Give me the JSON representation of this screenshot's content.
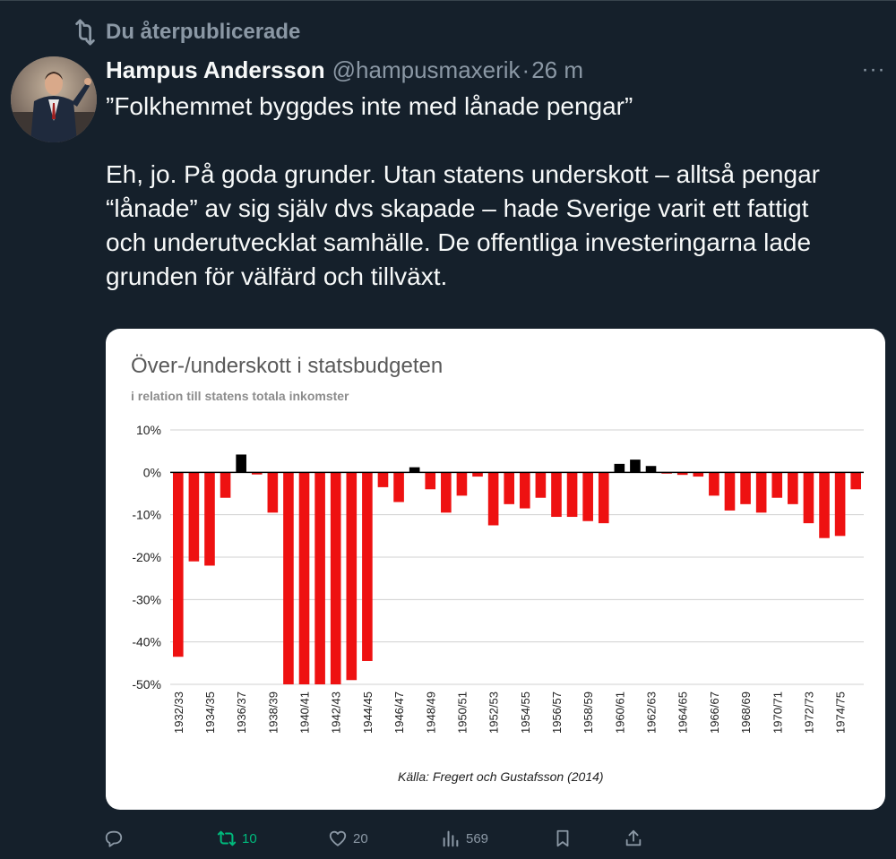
{
  "repost_banner": {
    "icon": "repost-icon",
    "text": "Du återpublicerade"
  },
  "author": {
    "name": "Hampus Andersson",
    "handle": "@hampusmaxerik",
    "separator": "·",
    "time": "26 m",
    "more_icon": "more-icon",
    "more_glyph": "···"
  },
  "tweet": {
    "line1": "”Folkhemmet byggdes inte med lånade pengar”",
    "line2": "Eh, jo. På goda grunder. Utan statens underskott – alltså pengar",
    "line3": "“lånade” av sig själv dvs skapade – hade Sverige varit ett fattigt",
    "line4": "och underutvecklat samhälle. De offentliga investeringarna lade",
    "line5": "grunden för välfärd och tillväxt."
  },
  "actions": {
    "reply": {
      "icon": "reply-icon",
      "count": ""
    },
    "repost": {
      "icon": "repost-icon",
      "count": "10",
      "color": "#00ba7c"
    },
    "like": {
      "icon": "heart-icon",
      "count": "20"
    },
    "views": {
      "icon": "views-icon",
      "count": "569"
    },
    "bookmark": {
      "icon": "bookmark-icon",
      "count": ""
    },
    "share": {
      "icon": "share-icon",
      "count": ""
    }
  },
  "chart_data": {
    "type": "bar",
    "title": "Över-/underskott i statsbudgeten",
    "subtitle": "i relation till statens totala inkomster",
    "source": "Källa: Fregert och Gustafsson (2014)",
    "ylim": [
      -50,
      10
    ],
    "yticks": [
      "10%",
      "0%",
      "-10%",
      "-20%",
      "-30%",
      "-40%",
      "-50%"
    ],
    "ytick_values": [
      10,
      0,
      -10,
      -20,
      -30,
      -40,
      -50
    ],
    "grid": true,
    "colors": {
      "negative": "#ee1111",
      "positive": "#000000"
    },
    "categories": [
      "1932/33",
      "1933/34",
      "1934/35",
      "1935/36",
      "1936/37",
      "1937/38",
      "1938/39",
      "1939/40",
      "1940/41",
      "1941/42",
      "1942/43",
      "1943/44",
      "1944/45",
      "1945/46",
      "1946/47",
      "1947/48",
      "1948/49",
      "1949/50",
      "1950/51",
      "1951/52",
      "1952/53",
      "1953/54",
      "1954/55",
      "1955/56",
      "1956/57",
      "1957/58",
      "1958/59",
      "1959/60",
      "1960/61",
      "1961/62",
      "1962/63",
      "1963/64",
      "1964/65",
      "1965/66",
      "1966/67",
      "1967/68",
      "1968/69",
      "1969/70",
      "1970/71",
      "1971/72",
      "1972/73",
      "1973/74",
      "1974/75",
      "1975/76"
    ],
    "xtick_labels": [
      "1932/33",
      "1934/35",
      "1936/37",
      "1938/39",
      "1940/41",
      "1942/43",
      "1944/45",
      "1946/47",
      "1948/49",
      "1950/51",
      "1952/53",
      "1954/55",
      "1956/57",
      "1958/59",
      "1960/61",
      "1962/63",
      "1964/65",
      "1966/67",
      "1968/69",
      "1970/71",
      "1972/73",
      "1974/75"
    ],
    "values": [
      -43.5,
      -21,
      -22,
      -6,
      4.2,
      -0.5,
      -9.5,
      -50,
      -50,
      -50,
      -50,
      -49,
      -44.5,
      -3.5,
      -7,
      1.2,
      -4,
      -9.5,
      -5.5,
      -1,
      -12.5,
      -7.5,
      -8.5,
      -6,
      -10.5,
      -10.5,
      -11.5,
      -12,
      2,
      3,
      1.5,
      -0.3,
      -0.6,
      -1,
      -5.5,
      -9,
      -7.5,
      -9.5,
      -6,
      -7.5,
      -12,
      -15.5,
      -15,
      -4
    ]
  }
}
